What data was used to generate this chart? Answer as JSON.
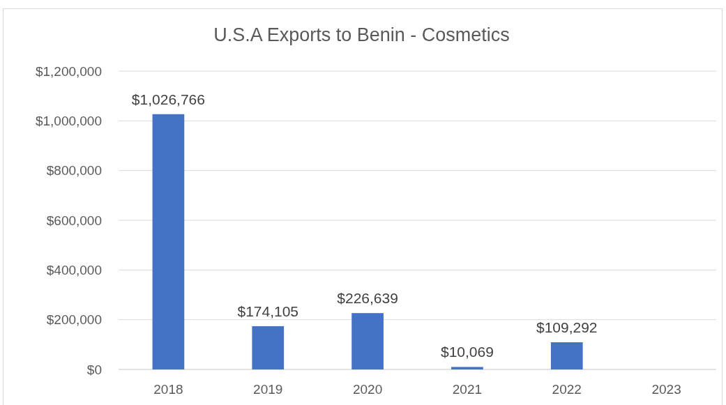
{
  "chart_data": {
    "type": "bar",
    "title": "U.S.A Exports to Benin - Cosmetics",
    "categories": [
      "2018",
      "2019",
      "2020",
      "2021",
      "2022",
      "2023"
    ],
    "values": [
      1026766,
      174105,
      226639,
      10069,
      109292,
      null
    ],
    "value_labels": [
      "$1,026,766",
      "$174,105",
      "$226,639",
      "$10,069",
      "$109,292",
      null
    ],
    "color": "#4472c4",
    "ylim": [
      0,
      1200000
    ],
    "yticks": [
      {
        "value": 0,
        "label": "$0"
      },
      {
        "value": 200000,
        "label": "$200,000"
      },
      {
        "value": 400000,
        "label": "$400,000"
      },
      {
        "value": 600000,
        "label": "$600,000"
      },
      {
        "value": 800000,
        "label": "$800,000"
      },
      {
        "value": 1000000,
        "label": "$1,000,000"
      },
      {
        "value": 1200000,
        "label": "$1,200,000"
      }
    ],
    "grid": "y"
  }
}
